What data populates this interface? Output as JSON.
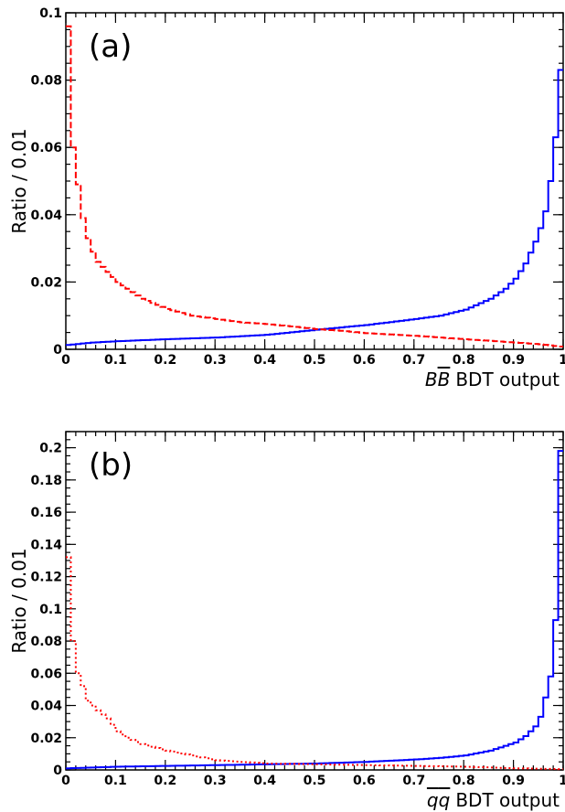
{
  "chart_data": [
    {
      "type": "line",
      "panel_label": "(a)",
      "ylabel": "Ratio / 0.01",
      "xlabel": {
        "symbol": "B",
        "bar_symbol": "B",
        "suffix": "BDT output"
      },
      "xlim": [
        0,
        1
      ],
      "ylim": [
        0,
        0.1
      ],
      "x_ticks": [
        0,
        0.1,
        0.2,
        0.3,
        0.4,
        0.5,
        0.6,
        0.7,
        0.8,
        0.9,
        1
      ],
      "x_tick_labels": [
        "0",
        "0.1",
        "0.2",
        "0.3",
        "0.4",
        "0.5",
        "0.6",
        "0.7",
        "0.8",
        "0.9",
        "1"
      ],
      "y_ticks": [
        0,
        0.02,
        0.04,
        0.06,
        0.08,
        0.1
      ],
      "y_tick_labels": [
        "0",
        "0.02",
        "0.04",
        "0.06",
        "0.08",
        "0.1"
      ],
      "x_minor_step": 0.02,
      "y_minor_step": 0.005,
      "grid": false,
      "bin_width": 0.01,
      "series": [
        {
          "style": "solid",
          "color": "#0000ff",
          "x": [
            0.0,
            0.05,
            0.1,
            0.2,
            0.3,
            0.4,
            0.5,
            0.6,
            0.7,
            0.75,
            0.8,
            0.85,
            0.88,
            0.9,
            0.92,
            0.94,
            0.95,
            0.96,
            0.97,
            0.98,
            0.99
          ],
          "values": [
            0.0013,
            0.002,
            0.0024,
            0.003,
            0.0035,
            0.0043,
            0.0058,
            0.0072,
            0.009,
            0.01,
            0.0118,
            0.015,
            0.018,
            0.021,
            0.0255,
            0.032,
            0.036,
            0.041,
            0.05,
            0.063,
            0.083
          ]
        },
        {
          "style": "dashed",
          "color": "#ff0000",
          "x": [
            0.0,
            0.01,
            0.02,
            0.03,
            0.04,
            0.05,
            0.06,
            0.08,
            0.1,
            0.12,
            0.15,
            0.2,
            0.25,
            0.3,
            0.35,
            0.4,
            0.45,
            0.5,
            0.55,
            0.6,
            0.7,
            0.8,
            0.9,
            0.95,
            0.99
          ],
          "values": [
            0.096,
            0.06,
            0.049,
            0.039,
            0.033,
            0.029,
            0.026,
            0.023,
            0.02,
            0.018,
            0.015,
            0.012,
            0.01,
            0.009,
            0.008,
            0.0075,
            0.0068,
            0.006,
            0.0055,
            0.0048,
            0.004,
            0.003,
            0.002,
            0.0015,
            0.0008
          ]
        }
      ]
    },
    {
      "type": "line",
      "panel_label": "(b)",
      "ylabel": "Ratio / 0.01",
      "xlabel": {
        "symbol": "q",
        "bar_symbol": "q",
        "suffix": "BDT output"
      },
      "xlim": [
        0,
        1
      ],
      "ylim": [
        0,
        0.21
      ],
      "x_ticks": [
        0,
        0.1,
        0.2,
        0.3,
        0.4,
        0.5,
        0.6,
        0.7,
        0.8,
        0.9,
        1
      ],
      "x_tick_labels": [
        "0",
        "0.1",
        "0.2",
        "0.3",
        "0.4",
        "0.5",
        "0.6",
        "0.7",
        "0.8",
        "0.9",
        "1"
      ],
      "y_ticks": [
        0,
        0.02,
        0.04,
        0.06,
        0.08,
        0.1,
        0.12,
        0.14,
        0.16,
        0.18,
        0.2
      ],
      "y_tick_labels": [
        "0",
        "0.02",
        "0.04",
        "0.06",
        "0.08",
        "0.1",
        "0.12",
        "0.14",
        "0.16",
        "0.18",
        "0.2"
      ],
      "x_minor_step": 0.02,
      "y_minor_step": 0.005,
      "grid": false,
      "bin_width": 0.01,
      "series": [
        {
          "style": "solid",
          "color": "#0000ff",
          "x": [
            0.0,
            0.1,
            0.2,
            0.3,
            0.4,
            0.5,
            0.6,
            0.7,
            0.75,
            0.8,
            0.85,
            0.9,
            0.92,
            0.94,
            0.95,
            0.96,
            0.97,
            0.98,
            0.99
          ],
          "values": [
            0.001,
            0.002,
            0.0025,
            0.003,
            0.0035,
            0.004,
            0.005,
            0.0065,
            0.0075,
            0.009,
            0.012,
            0.017,
            0.021,
            0.027,
            0.033,
            0.045,
            0.058,
            0.093,
            0.198
          ]
        },
        {
          "style": "dotted",
          "color": "#ff0000",
          "x": [
            0.0,
            0.01,
            0.02,
            0.03,
            0.04,
            0.05,
            0.06,
            0.08,
            0.1,
            0.12,
            0.15,
            0.2,
            0.25,
            0.3,
            0.35,
            0.4,
            0.5,
            0.6,
            0.7,
            0.8,
            0.9,
            0.99
          ],
          "values": [
            0.132,
            0.08,
            0.06,
            0.052,
            0.043,
            0.04,
            0.037,
            0.032,
            0.024,
            0.02,
            0.016,
            0.012,
            0.009,
            0.006,
            0.005,
            0.004,
            0.0035,
            0.003,
            0.0025,
            0.002,
            0.001,
            0.0005
          ]
        }
      ]
    }
  ]
}
